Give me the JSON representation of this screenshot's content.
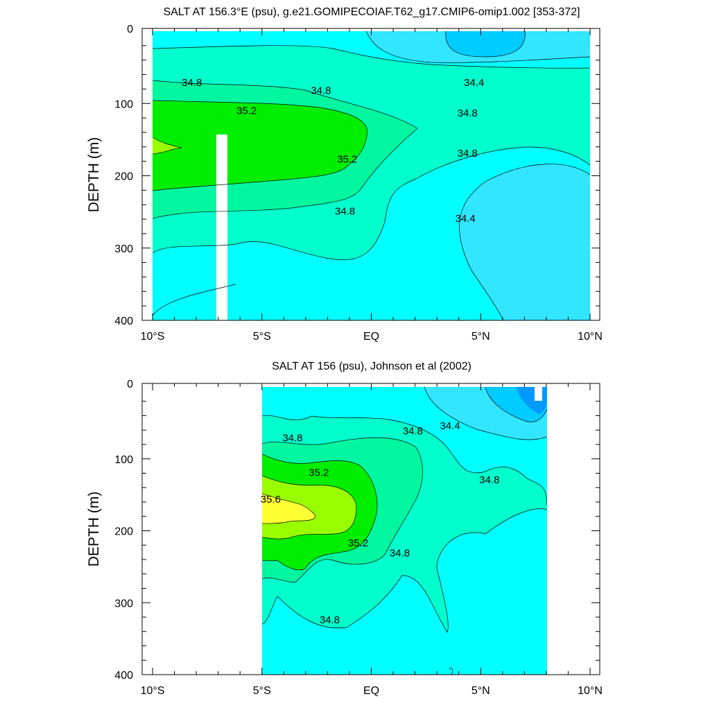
{
  "chart_data": [
    {
      "type": "contour",
      "title": "SALT AT 156.3°E (psu), g.e21.GOMIPECOIAF.T62_g17.CMIP6-omip1.002 [353-372]",
      "ylabel": "DEPTH (m)",
      "xlabel": "",
      "xlim": [
        -10,
        10
      ],
      "ylim": [
        400,
        0
      ],
      "x_tick_values": [
        -10,
        -5,
        0,
        5,
        10
      ],
      "x_tick_labels": [
        "10°S",
        "5°S",
        "EQ",
        "5°N",
        "10°N"
      ],
      "y_tick_values": [
        0,
        100,
        200,
        300,
        400
      ],
      "y_tick_labels": [
        "0",
        "100",
        "200",
        "300",
        "400"
      ],
      "grid": false,
      "contour_interval": 0.2,
      "levels": [
        34.0,
        34.2,
        34.4,
        34.6,
        34.8,
        35.0,
        35.2,
        35.4,
        35.6
      ],
      "level_colors": [
        "#0099ff",
        "#00ccff",
        "#33e6ff",
        "#00ffff",
        "#00ffcc",
        "#00f7a0",
        "#00ee00",
        "#99ff00",
        "#ffff33"
      ],
      "contour_labels": [
        {
          "text": "34.8",
          "x": -8.2,
          "depth": 72
        },
        {
          "text": "34.8",
          "x": -2.3,
          "depth": 83
        },
        {
          "text": "34.4",
          "x": 4.7,
          "depth": 72
        },
        {
          "text": "35.2",
          "x": -5.7,
          "depth": 111
        },
        {
          "text": "34.8",
          "x": 4.4,
          "depth": 114
        },
        {
          "text": "35.2",
          "x": -1.1,
          "depth": 178
        },
        {
          "text": "34.8",
          "x": 4.4,
          "depth": 170
        },
        {
          "text": "34.8",
          "x": -1.2,
          "depth": 250
        },
        {
          "text": "34.4",
          "x": 4.3,
          "depth": 260
        }
      ],
      "masked": [
        {
          "x": [
            -7.1,
            -6.6
          ],
          "depth": [
            145,
            400
          ]
        }
      ]
    },
    {
      "type": "contour",
      "title": "SALT AT 156 (psu), Johnson et al (2002)",
      "ylabel": "DEPTH (m)",
      "xlabel": "",
      "xlim": [
        -10,
        10
      ],
      "ylim": [
        400,
        0
      ],
      "x_tick_values": [
        -10,
        -5,
        0,
        5,
        10
      ],
      "x_tick_labels": [
        "10°S",
        "5°S",
        "EQ",
        "5°N",
        "10°N"
      ],
      "y_tick_values": [
        0,
        100,
        200,
        300,
        400
      ],
      "y_tick_labels": [
        "0",
        "100",
        "200",
        "300",
        "400"
      ],
      "grid": false,
      "contour_interval": 0.2,
      "data_extent_x": [
        -5,
        8
      ],
      "levels": [
        34.0,
        34.2,
        34.4,
        34.6,
        34.8,
        35.0,
        35.2,
        35.4,
        35.6
      ],
      "level_colors": [
        "#0099ff",
        "#00ccff",
        "#33e6ff",
        "#00ffff",
        "#00ffcc",
        "#00f7a0",
        "#00ee00",
        "#99ff00",
        "#ffff33"
      ],
      "contour_labels": [
        {
          "text": "34.8",
          "x": -3.6,
          "depth": 72
        },
        {
          "text": "34.8",
          "x": 1.9,
          "depth": 62
        },
        {
          "text": "34.4",
          "x": 3.6,
          "depth": 55
        },
        {
          "text": "35.2",
          "x": -2.4,
          "depth": 120
        },
        {
          "text": "34.8",
          "x": 5.4,
          "depth": 130
        },
        {
          "text": "35.6",
          "x": -4.6,
          "depth": 157
        },
        {
          "text": "35.2",
          "x": -0.6,
          "depth": 218
        },
        {
          "text": "34.8",
          "x": 1.3,
          "depth": 232
        },
        {
          "text": "34.8",
          "x": -1.9,
          "depth": 325
        }
      ]
    }
  ]
}
